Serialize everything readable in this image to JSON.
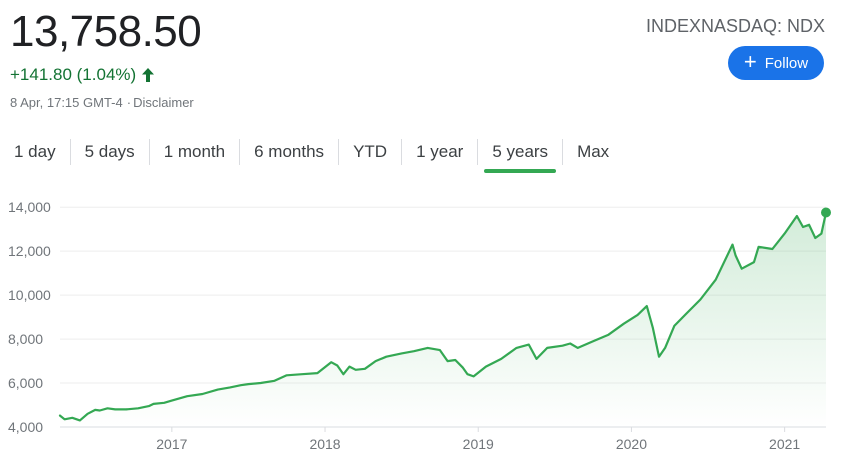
{
  "quote": {
    "price": "13,758.50",
    "change": "+141.80 (1.04%)",
    "datetime": "8 Apr, 17:15 GMT-4",
    "disclaimer": "Disclaimer",
    "ticker": "INDEXNASDAQ: NDX",
    "follow_label": "Follow",
    "up_color": "#137333",
    "icons": [
      "arrow-up-icon",
      "plus-icon"
    ]
  },
  "tabs": [
    {
      "label": "1 day",
      "active": false
    },
    {
      "label": "5 days",
      "active": false
    },
    {
      "label": "1 month",
      "active": false
    },
    {
      "label": "6 months",
      "active": false
    },
    {
      "label": "YTD",
      "active": false
    },
    {
      "label": "1 year",
      "active": false
    },
    {
      "label": "5 years",
      "active": true
    },
    {
      "label": "Max",
      "active": false
    }
  ],
  "chart_data": {
    "type": "area",
    "line_color": "#34a853",
    "grid": true,
    "ylim": [
      4000,
      14600
    ],
    "xlim": [
      2016.27,
      2021.27
    ],
    "yticks": [
      4000,
      6000,
      8000,
      10000,
      12000,
      14000
    ],
    "ytick_labels": [
      "4,000",
      "6,000",
      "8,000",
      "10,000",
      "12,000",
      "14,000"
    ],
    "xticks": [
      2017,
      2018,
      2019,
      2020,
      2021
    ],
    "xtick_labels": [
      "2017",
      "2018",
      "2019",
      "2020",
      "2021"
    ],
    "x": [
      2016.27,
      2016.3,
      2016.35,
      2016.4,
      2016.45,
      2016.5,
      2016.53,
      2016.58,
      2016.63,
      2016.7,
      2016.78,
      2016.85,
      2016.88,
      2016.95,
      2017.0,
      2017.1,
      2017.2,
      2017.3,
      2017.38,
      2017.45,
      2017.5,
      2017.58,
      2017.67,
      2017.75,
      2017.85,
      2017.95,
      2018.04,
      2018.08,
      2018.12,
      2018.16,
      2018.2,
      2018.26,
      2018.33,
      2018.4,
      2018.5,
      2018.58,
      2018.67,
      2018.75,
      2018.8,
      2018.85,
      2018.9,
      2018.93,
      2018.97,
      2019.05,
      2019.15,
      2019.25,
      2019.33,
      2019.38,
      2019.45,
      2019.55,
      2019.6,
      2019.65,
      2019.75,
      2019.85,
      2019.95,
      2020.04,
      2020.1,
      2020.14,
      2020.18,
      2020.22,
      2020.28,
      2020.35,
      2020.45,
      2020.55,
      2020.66,
      2020.68,
      2020.72,
      2020.8,
      2020.83,
      2020.92,
      2021.0,
      2021.08,
      2021.12,
      2021.16,
      2021.2,
      2021.24,
      2021.27
    ],
    "values": [
      4520,
      4350,
      4420,
      4300,
      4600,
      4780,
      4750,
      4850,
      4800,
      4800,
      4850,
      4950,
      5050,
      5100,
      5200,
      5400,
      5500,
      5700,
      5800,
      5900,
      5950,
      6000,
      6100,
      6350,
      6400,
      6450,
      6950,
      6800,
      6400,
      6750,
      6600,
      6650,
      7000,
      7200,
      7350,
      7450,
      7600,
      7500,
      7000,
      7050,
      6700,
      6400,
      6300,
      6750,
      7100,
      7600,
      7750,
      7100,
      7600,
      7700,
      7800,
      7600,
      7900,
      8200,
      8700,
      9100,
      9500,
      8500,
      7200,
      7600,
      8600,
      9100,
      9800,
      10700,
      12300,
      11800,
      11200,
      11500,
      12200,
      12100,
      12800,
      13600,
      13100,
      13200,
      12600,
      12800,
      13758
    ]
  }
}
